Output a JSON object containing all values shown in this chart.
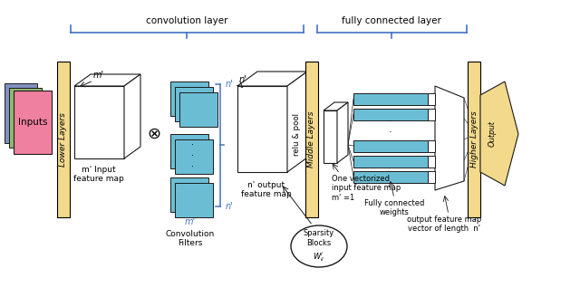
{
  "fig_width": 6.4,
  "fig_height": 3.28,
  "dpi": 100,
  "bg": "#ffffff",
  "tan": "#f2d98c",
  "blue": "#6bbdd4",
  "pink": "#f080a0",
  "green": "#90b870",
  "purple": "#8090c0",
  "black": "#1a1a1a",
  "blue_ann": "#4472c4",
  "labels": {
    "inputs": "Inputs",
    "lower_layers": "Lower Layers",
    "middle_layers": "Middle Layers",
    "higher_layers": "Higher Layers",
    "output": "Output",
    "conv_layer": "convolution layer",
    "fc_layer": "fully connected layer",
    "m_input": "m' Input\nfeature map",
    "conv_filters": "Convolution\nFilters",
    "n_output": "n' output\nfeature map",
    "relu_pool": "relu & pool",
    "one_vec": "One vectorized\ninput feature map\nm' =1",
    "fc_weights": "Fully connected\nweights",
    "out_feat": "output feature map\nvector of length  n'"
  }
}
